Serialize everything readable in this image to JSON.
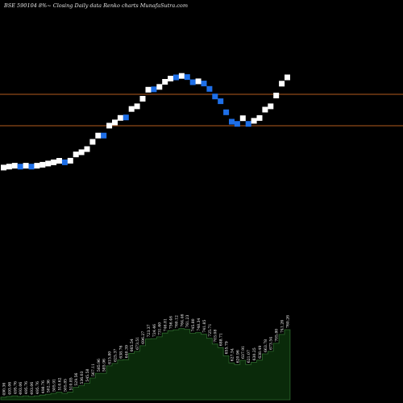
{
  "header": {
    "title": "BSE 590104  8%~   Closing Daily data  Renko  charts MunafaSutra.com"
  },
  "chart_data": {
    "type": "renko",
    "title": "BSE 590104  8%~   Closing Daily data  Renko  charts MunafaSutra.com",
    "price_range": [
      455,
      800
    ],
    "horizontal_lines": [
      {
        "value": 720,
        "color": "#b35c1e"
      },
      {
        "value": 657,
        "color": "#b35c1e"
      }
    ],
    "bricks": [
      {
        "direction": "up",
        "value": 490.36
      },
      {
        "direction": "up",
        "value": 493.06
      },
      {
        "direction": "up",
        "value": 495.76
      },
      {
        "direction": "down",
        "value": 493.06
      },
      {
        "direction": "up",
        "value": 495.76
      },
      {
        "direction": "down",
        "value": 493.06
      },
      {
        "direction": "up",
        "value": 495.76
      },
      {
        "direction": "up",
        "value": 498.76
      },
      {
        "direction": "up",
        "value": 502.36
      },
      {
        "direction": "up",
        "value": 505.91
      },
      {
        "direction": "up",
        "value": 510.62
      },
      {
        "direction": "down",
        "value": 505.85
      },
      {
        "direction": "up",
        "value": 510.85
      },
      {
        "direction": "up",
        "value": 529.56
      },
      {
        "direction": "up",
        "value": 536.03
      },
      {
        "direction": "up",
        "value": 545.58
      },
      {
        "direction": "up",
        "value": 567.11
      },
      {
        "direction": "up",
        "value": 585.96
      },
      {
        "direction": "down",
        "value": 585.96
      },
      {
        "direction": "up",
        "value": 615.8
      },
      {
        "direction": "up",
        "value": 625.37
      },
      {
        "direction": "up",
        "value": 638.76
      },
      {
        "direction": "down",
        "value": 640.39
      },
      {
        "direction": "up",
        "value": 665.54
      },
      {
        "direction": "up",
        "value": 673.51
      },
      {
        "direction": "up",
        "value": 696.27
      },
      {
        "direction": "up",
        "value": 723.37
      },
      {
        "direction": "down",
        "value": 724.46
      },
      {
        "direction": "up",
        "value": 731.6
      },
      {
        "direction": "up",
        "value": 746.81
      },
      {
        "direction": "up",
        "value": 756.46
      },
      {
        "direction": "down",
        "value": 760.12
      },
      {
        "direction": "up",
        "value": 764.46
      },
      {
        "direction": "down",
        "value": 761.23
      },
      {
        "direction": "down",
        "value": 745.8
      },
      {
        "direction": "up",
        "value": 748.34
      },
      {
        "direction": "down",
        "value": 741.85
      },
      {
        "direction": "down",
        "value": 725.71
      },
      {
        "direction": "down",
        "value": 703.08
      },
      {
        "direction": "down",
        "value": 688.71
      },
      {
        "direction": "down",
        "value": 655.79
      },
      {
        "direction": "down",
        "value": 627.54
      },
      {
        "direction": "down",
        "value": 620.96
      },
      {
        "direction": "up",
        "value": 637.91
      },
      {
        "direction": "down",
        "value": 621.07
      },
      {
        "direction": "up",
        "value": 630.25
      },
      {
        "direction": "up",
        "value": 638.49
      },
      {
        "direction": "up",
        "value": 663.78
      },
      {
        "direction": "up",
        "value": 673.54
      },
      {
        "direction": "up",
        "value": 705.8
      },
      {
        "direction": "up",
        "value": 741.26
      },
      {
        "direction": "up",
        "value": 760.26
      }
    ],
    "volume_labels": [
      "490.36",
      "493.06",
      "495.76",
      "493.06",
      "495.76",
      "493.06",
      "495.76",
      "498.76",
      "502.36",
      "505.91",
      "510.62",
      "505.85",
      "510.85",
      "529.56",
      "536.03",
      "545.58",
      "567.11",
      "585.96",
      "585.96",
      "615.80",
      "625.37",
      "638.76",
      "640.39",
      "665.54",
      "673.51",
      "696.27",
      "723.37",
      "724.46",
      "731.60",
      "746.81",
      "756.46",
      "760.12",
      "764.46",
      "761.23",
      "745.80",
      "748.34",
      "741.85",
      "725.71",
      "703.08",
      "688.71",
      "655.79",
      "627.54",
      "620.96",
      "637.91",
      "621.07",
      "630.25",
      "638.49",
      "663.78",
      "673.54",
      "705.80",
      "741.26",
      "760.26"
    ],
    "colors": {
      "background": "#000000",
      "up_brick": "#ffffff",
      "down_brick": "#1e6fe8",
      "volume_fill": "#0a2a0a",
      "volume_stroke": "#2e6a2e",
      "title": "#e6e6e6"
    },
    "grid": false
  }
}
